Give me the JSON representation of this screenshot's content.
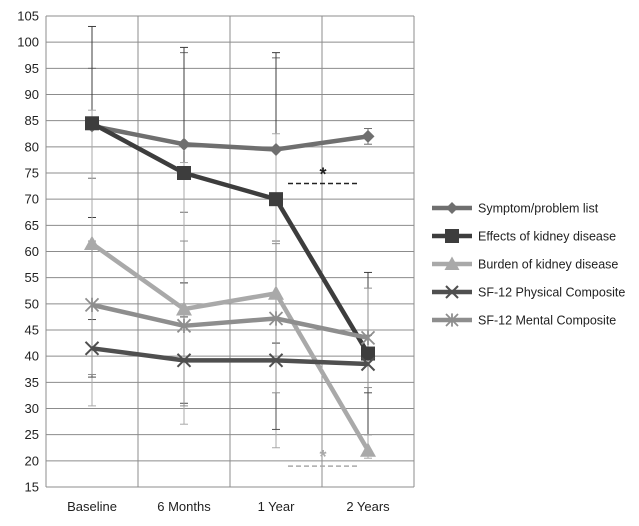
{
  "chart_data": {
    "type": "line",
    "categories": [
      "Baseline",
      "6 Months",
      "1 Year",
      "2 Years"
    ],
    "ylim": [
      15,
      105
    ],
    "yticks": [
      15,
      20,
      25,
      30,
      35,
      40,
      45,
      50,
      55,
      60,
      65,
      70,
      75,
      80,
      85,
      90,
      95,
      100,
      105
    ],
    "grid": true,
    "legend_position": "right",
    "series": [
      {
        "name": "Symptom/problem list",
        "marker": "diamond",
        "color": "#6f6f6f",
        "values": [
          84,
          80.5,
          79.5,
          82
        ],
        "error_low": [
          74,
          67.5,
          62,
          80.5
        ],
        "error_high": [
          95,
          98,
          97,
          83.5
        ]
      },
      {
        "name": "Effects of kidney disease",
        "marker": "square",
        "color": "#3d3d3d",
        "values": [
          84.5,
          75,
          70,
          40.5
        ],
        "error_low": [
          66.5,
          54,
          42.5,
          25
        ],
        "error_high": [
          103,
          99,
          98,
          56
        ]
      },
      {
        "name": "Burden of kidney disease",
        "marker": "triangle",
        "color": "#a9a9a9",
        "values": [
          61.5,
          49,
          52,
          22
        ],
        "error_low": [
          30.5,
          27,
          22.5,
          20.5
        ],
        "error_high": [
          87,
          77,
          82.5,
          25
        ]
      },
      {
        "name": "SF-12 Physical Composite",
        "marker": "x",
        "color": "#4f4f4f",
        "values": [
          41.5,
          39.2,
          39.2,
          38.5
        ],
        "error_low": [
          36,
          31,
          26,
          33
        ],
        "error_high": [
          47,
          47.5,
          52,
          44
        ]
      },
      {
        "name": "SF-12 Mental Composite",
        "marker": "star",
        "color": "#8e8e8e",
        "values": [
          49.8,
          45.8,
          47.2,
          43.5
        ],
        "error_low": [
          36.5,
          30.5,
          33,
          34
        ],
        "error_high": [
          62,
          62,
          61.5,
          53
        ]
      }
    ],
    "annotations": [
      {
        "text": "*",
        "x_between": [
          "1 Year",
          "2 Years"
        ],
        "y": 73,
        "color": "#222222"
      },
      {
        "text": "*",
        "x_between": [
          "1 Year",
          "2 Years"
        ],
        "y": 19,
        "color": "#a9a9a9"
      }
    ]
  }
}
